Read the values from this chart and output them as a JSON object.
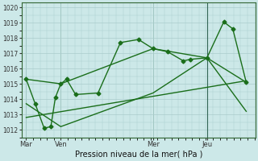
{
  "background_color": "#cce8e8",
  "grid_color": "#aacccc",
  "line_color": "#1a6e1a",
  "xlabel": "Pression niveau de la mer( hPa )",
  "ylim": [
    1011.5,
    1020.3
  ],
  "yticks": [
    1012,
    1013,
    1014,
    1015,
    1016,
    1017,
    1018,
    1019,
    1020
  ],
  "xtick_labels": [
    "Mar",
    "Ven",
    "Mer",
    "Jeu"
  ],
  "xtick_pos": [
    0,
    15.4,
    56.5,
    80.5
  ],
  "xlim": [
    -2,
    102
  ],
  "vline_x": [
    0,
    15.4,
    56.5,
    80.5
  ],
  "vline_jeu_x": 80.5,
  "series": [
    {
      "x": [
        0,
        4,
        8,
        11,
        13,
        15.4,
        18,
        22,
        32,
        42,
        50,
        56.5,
        63,
        70,
        73,
        80.5,
        88,
        92,
        98
      ],
      "y": [
        1015.3,
        1013.7,
        1012.1,
        1012.2,
        1014.1,
        1015.0,
        1015.3,
        1014.3,
        1014.4,
        1017.7,
        1017.9,
        1017.3,
        1017.1,
        1016.5,
        1016.6,
        1016.7,
        1019.05,
        1018.6,
        1015.1
      ],
      "marker": "D",
      "markersize": 2.5,
      "linewidth": 1.0,
      "zorder": 4
    },
    {
      "x": [
        0,
        15.4,
        56.5,
        80.5,
        98
      ],
      "y": [
        1015.3,
        1015.0,
        1017.3,
        1016.7,
        1015.1
      ],
      "marker": null,
      "markersize": 0,
      "linewidth": 1.0,
      "zorder": 3
    },
    {
      "x": [
        0,
        15.4,
        56.5,
        80.5,
        98
      ],
      "y": [
        1013.7,
        1012.2,
        1014.4,
        1016.7,
        1013.2
      ],
      "marker": null,
      "markersize": 0,
      "linewidth": 1.0,
      "zorder": 3
    },
    {
      "x": [
        0,
        98
      ],
      "y": [
        1012.8,
        1015.2
      ],
      "marker": null,
      "markersize": 0,
      "linewidth": 1.0,
      "zorder": 3
    }
  ]
}
